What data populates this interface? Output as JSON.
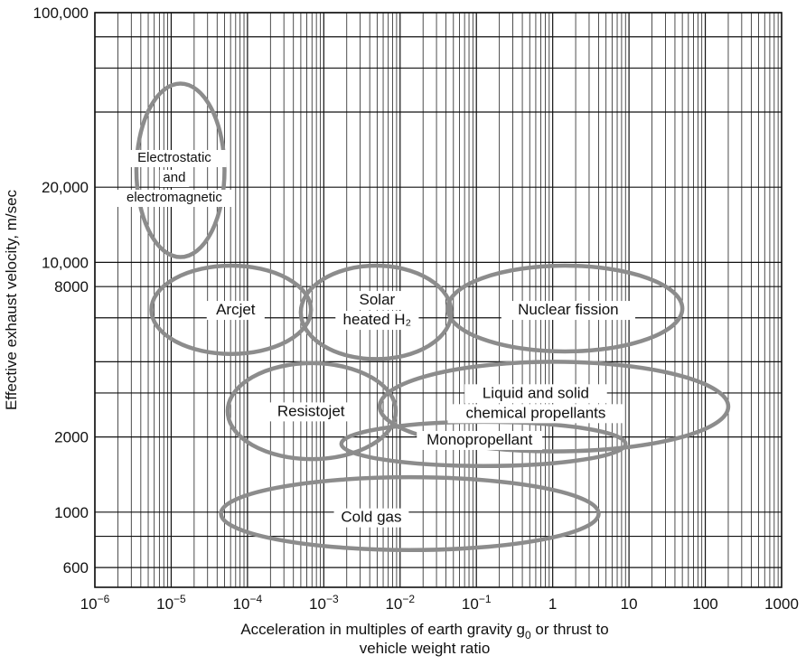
{
  "chart_data": {
    "type": "scatter",
    "xscale": "log",
    "yscale": "log",
    "xlim": [
      1e-06,
      1000
    ],
    "ylim": [
      500,
      100000
    ],
    "grid": true,
    "xlabel_line1": "Acceleration in multiples of earth gravity g",
    "xlabel_sub": "0",
    "xlabel_line1_end": " or thrust to",
    "xlabel_line2": "vehicle weight ratio",
    "ylabel": "Effective exhaust velocity, m/sec",
    "x_ticks": [
      {
        "value": 1e-06,
        "base": "10",
        "exp": "−6"
      },
      {
        "value": 1e-05,
        "base": "10",
        "exp": "−5"
      },
      {
        "value": 0.0001,
        "base": "10",
        "exp": "−4"
      },
      {
        "value": 0.001,
        "base": "10",
        "exp": "−3"
      },
      {
        "value": 0.01,
        "base": "10",
        "exp": "−2"
      },
      {
        "value": 0.1,
        "base": "10",
        "exp": "−1"
      },
      {
        "value": 1,
        "base": "1",
        "exp": ""
      },
      {
        "value": 10,
        "base": "10",
        "exp": ""
      },
      {
        "value": 100,
        "base": "100",
        "exp": ""
      },
      {
        "value": 1000,
        "base": "1000",
        "exp": ""
      }
    ],
    "y_ticks": [
      {
        "value": 600,
        "label": "600"
      },
      {
        "value": 1000,
        "label": "1000"
      },
      {
        "value": 2000,
        "label": "2000"
      },
      {
        "value": 8000,
        "label": "8000"
      },
      {
        "value": 10000,
        "label": "10,000"
      },
      {
        "value": 20000,
        "label": "20,000"
      },
      {
        "value": 100000,
        "label": "100,000"
      }
    ],
    "y_grid_values": [
      600,
      800,
      1000,
      2000,
      3000,
      4000,
      6000,
      8000,
      10000,
      20000,
      40000,
      60000,
      80000,
      100000
    ],
    "regions": [
      {
        "name": "electrostatic",
        "lines": [
          "Electrostatic",
          "and",
          "electromagnetic"
        ],
        "x_range": [
          3.5e-06,
          5e-05
        ],
        "y_range": [
          10500,
          52000
        ],
        "label_x": 1.1e-05,
        "label_y": 22000,
        "small": true
      },
      {
        "name": "arcjet",
        "lines": [
          "Arcjet"
        ],
        "x_range": [
          5.5e-06,
          0.00068
        ],
        "y_range": [
          4300,
          9700
        ],
        "label_x": 7e-05,
        "label_y": 6500,
        "small": false
      },
      {
        "name": "solar-heated-h2",
        "lines": [
          "Solar",
          "heated H₂"
        ],
        "x_range": [
          0.0005,
          0.047
        ],
        "y_range": [
          4100,
          9700
        ],
        "label_x": 0.005,
        "label_y": 6500,
        "small": false
      },
      {
        "name": "nuclear-fission",
        "lines": [
          "Nuclear fission"
        ],
        "x_range": [
          0.042,
          50
        ],
        "y_range": [
          4400,
          9700
        ],
        "label_x": 1.6,
        "label_y": 6500,
        "small": false
      },
      {
        "name": "resistojet",
        "lines": [
          "Resistojet"
        ],
        "x_range": [
          5.5e-05,
          0.0088
        ],
        "y_range": [
          1630,
          3950
        ],
        "label_x": 0.00068,
        "label_y": 2550,
        "small": false
      },
      {
        "name": "liquid-solid",
        "lines": [
          "Liquid and solid",
          "chemical propellants"
        ],
        "x_range": [
          0.0054,
          200
        ],
        "y_range": [
          1750,
          4000
        ],
        "label_x": 0.6,
        "label_y": 2750,
        "small": false
      },
      {
        "name": "monopropellant",
        "lines": [
          "Monopropellant"
        ],
        "x_range": [
          0.0017,
          9
        ],
        "y_range": [
          1530,
          2300
        ],
        "label_x": 0.11,
        "label_y": 1960,
        "small": false
      },
      {
        "name": "cold-gas",
        "lines": [
          "Cold gas"
        ],
        "x_range": [
          4.5e-05,
          4
        ],
        "y_range": [
          705,
          1380
        ],
        "label_x": 0.0042,
        "label_y": 960,
        "small": false
      }
    ]
  }
}
